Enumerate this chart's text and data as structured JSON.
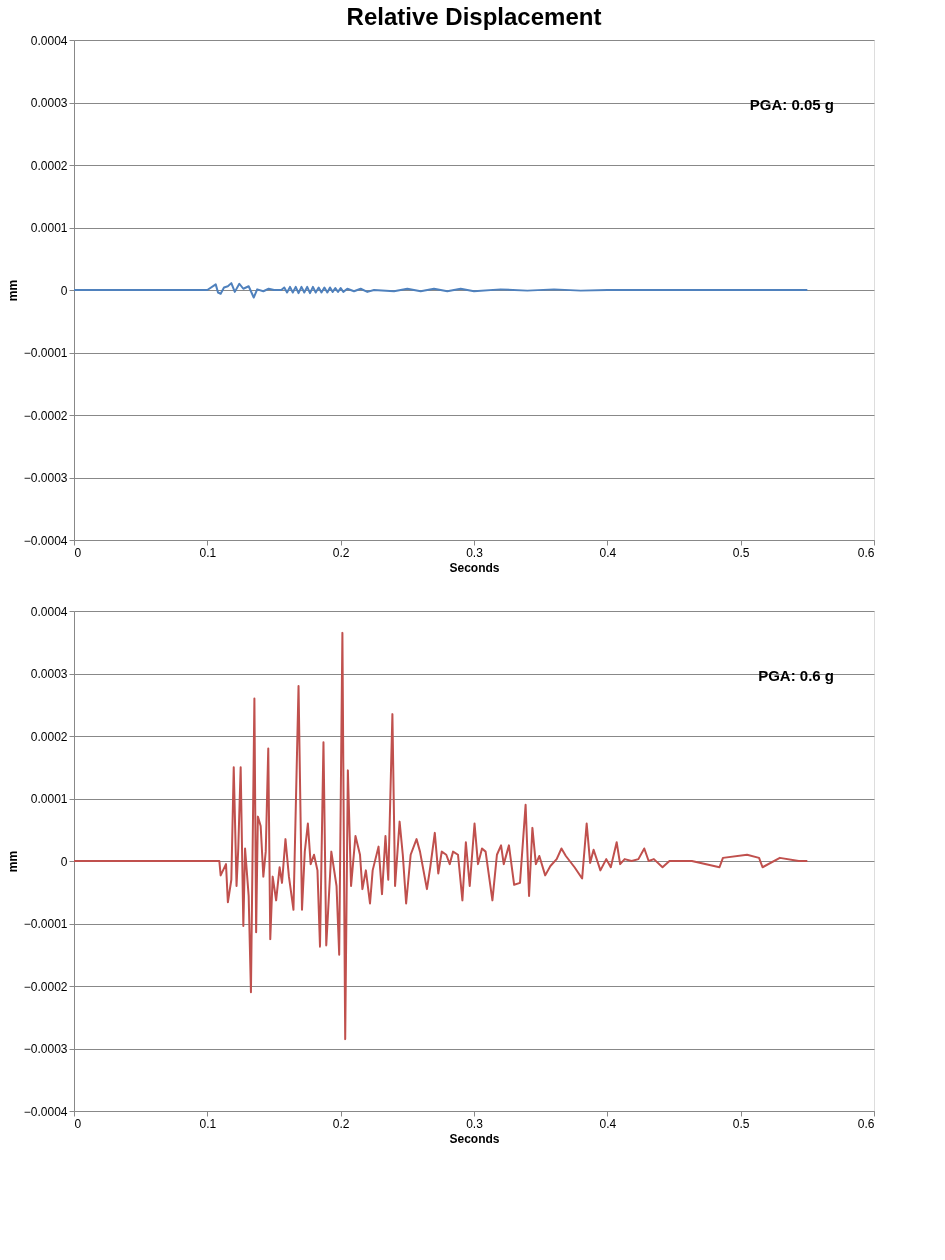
{
  "chart_data": [
    {
      "type": "line",
      "title": "Relative Displacement",
      "xlabel": "Seconds",
      "ylabel": "mm",
      "xlim": [
        0,
        0.6
      ],
      "ylim": [
        -0.0004,
        0.0004
      ],
      "xticks": [
        0,
        0.1,
        0.2,
        0.3,
        0.4,
        0.5,
        0.6
      ],
      "yticks": [
        -0.0004,
        -0.0003,
        -0.0002,
        -0.0001,
        0,
        0.0001,
        0.0002,
        0.0003,
        0.0004
      ],
      "grid": "y",
      "annotations": [
        "PGA: 0.05 g"
      ],
      "series": [
        {
          "color": "#4f81bd",
          "x": [
            0,
            0.1,
            0.1063,
            0.108,
            0.11,
            0.1125,
            0.1154,
            0.118,
            0.1206,
            0.124,
            0.127,
            0.131,
            0.1348,
            0.1374,
            0.142,
            0.146,
            0.15,
            0.1555,
            0.1577,
            0.1598,
            0.162,
            0.1641,
            0.1663,
            0.1684,
            0.1706,
            0.1727,
            0.1749,
            0.177,
            0.1792,
            0.1813,
            0.1835,
            0.1856,
            0.1878,
            0.19,
            0.192,
            0.194,
            0.196,
            0.198,
            0.2,
            0.202,
            0.205,
            0.21,
            0.215,
            0.22,
            0.225,
            0.24,
            0.25,
            0.26,
            0.27,
            0.28,
            0.29,
            0.3,
            0.32,
            0.34,
            0.36,
            0.38,
            0.4,
            0.55
          ],
          "values": [
            0,
            0,
            9e-06,
            -4e-06,
            -6e-06,
            4e-06,
            6e-06,
            1.1e-05,
            -3e-06,
            1e-05,
            2e-06,
            6e-06,
            -1.2e-05,
            1e-06,
            -2e-06,
            2e-06,
            0,
            0,
            4e-06,
            -4e-06,
            5e-06,
            -4e-06,
            5e-06,
            -5e-06,
            5e-06,
            -4e-06,
            5e-06,
            -5e-06,
            5e-06,
            -4e-06,
            4e-06,
            -4e-06,
            4e-06,
            -4e-06,
            4e-06,
            -3e-06,
            3e-06,
            -3e-06,
            3e-06,
            -3e-06,
            2e-06,
            -2e-06,
            2e-06,
            -3e-06,
            0,
            -2e-06,
            2e-06,
            -2e-06,
            2e-06,
            -2e-06,
            2e-06,
            -2e-06,
            1e-06,
            -1e-06,
            1e-06,
            -1e-06,
            0,
            0
          ]
        }
      ]
    },
    {
      "type": "line",
      "xlabel": "Seconds",
      "ylabel": "mm",
      "xlim": [
        0,
        0.6
      ],
      "ylim": [
        -0.0004,
        0.0004
      ],
      "xticks": [
        0,
        0.1,
        0.2,
        0.3,
        0.4,
        0.5,
        0.6
      ],
      "yticks": [
        -0.0004,
        -0.0003,
        -0.0002,
        -0.0001,
        0,
        0.0001,
        0.0002,
        0.0003,
        0.0004
      ],
      "grid": "y",
      "annotations": [
        "PGA:  0.6 g"
      ],
      "series": [
        {
          "color": "#c0504d",
          "x": [
            0,
            0.075,
            0.096,
            0.109,
            0.11,
            0.114,
            0.1154,
            0.118,
            0.1198,
            0.1219,
            0.1232,
            0.125,
            0.127,
            0.1283,
            0.131,
            0.1327,
            0.1353,
            0.1366,
            0.1379,
            0.14,
            0.142,
            0.1438,
            0.1457,
            0.1472,
            0.149,
            0.1516,
            0.1542,
            0.156,
            0.1586,
            0.1612,
            0.1646,
            0.1684,
            0.171,
            0.1731,
            0.1754,
            0.1775,
            0.18,
            0.1826,
            0.1845,
            0.1871,
            0.1892,
            0.193,
            0.1969,
            0.1989,
            0.2013,
            0.2034,
            0.2054,
            0.2078,
            0.2111,
            0.2145,
            0.2163,
            0.2189,
            0.222,
            0.224,
            0.2284,
            0.231,
            0.2336,
            0.2357,
            0.2388,
            0.2408,
            0.2442,
            0.2466,
            0.2491,
            0.2525,
            0.2569,
            0.2595,
            0.2647,
            0.2672,
            0.2706,
            0.2732,
            0.2758,
            0.2792,
            0.2818,
            0.2843,
            0.288,
            0.2913,
            0.2939,
            0.2968,
            0.3004,
            0.303,
            0.306,
            0.3087,
            0.3138,
            0.3172,
            0.3203,
            0.3223,
            0.3262,
            0.3301,
            0.3345,
            0.3387,
            0.3413,
            0.3438,
            0.3464,
            0.349,
            0.3534,
            0.3573,
            0.362,
            0.3656,
            0.3689,
            0.3754,
            0.3811,
            0.3845,
            0.3871,
            0.3897,
            0.3948,
            0.3992,
            0.4026,
            0.407,
            0.4096,
            0.413,
            0.4182,
            0.4233,
            0.4277,
            0.431,
            0.4349,
            0.4414,
            0.4466,
            0.4634,
            0.4841,
            0.4867,
            0.5048,
            0.5138,
            0.5164,
            0.5294,
            0.5436,
            0.55
          ],
          "values": [
            0,
            0,
            0,
            0,
            -2.3e-05,
            -5e-06,
            -6.6e-05,
            -3e-05,
            0.00015,
            -4e-05,
            2e-05,
            0.00015,
            -0.000104,
            2e-05,
            -5.6e-05,
            -0.00021,
            0.00026,
            -0.000114,
            7.1e-05,
            5.6e-05,
            -2.5e-05,
            1.5e-05,
            0.00018,
            -0.000125,
            -2.5e-05,
            -6.3e-05,
            -1e-05,
            -3.5e-05,
            3.5e-05,
            -2.5e-05,
            -7.8e-05,
            0.00028,
            -7.8e-05,
            1.5e-05,
            6e-05,
            -5e-06,
            1e-05,
            -1.5e-05,
            -0.000137,
            0.00019,
            -0.000135,
            1.5e-05,
            -4e-05,
            -0.00015,
            0.000365,
            -0.000285,
            0.000145,
            -4e-05,
            4e-05,
            1e-05,
            -4.5e-05,
            -1.5e-05,
            -6.8e-05,
            -1.5e-05,
            2.3e-05,
            -5.3e-05,
            4e-05,
            -3e-05,
            0.000235,
            -4e-05,
            6.3e-05,
            1e-05,
            -6.8e-05,
            1e-05,
            3.5e-05,
            1.5e-05,
            -4.5e-05,
            -1e-05,
            4.5e-05,
            -2e-05,
            1.5e-05,
            1e-05,
            -5e-06,
            1.5e-05,
            1e-05,
            -6.3e-05,
            3e-05,
            -4e-05,
            6e-05,
            -5e-06,
            2e-05,
            1.5e-05,
            -6.3e-05,
            1e-05,
            2.5e-05,
            -5e-06,
            2.5e-05,
            -3.8e-05,
            -3.5e-05,
            9e-05,
            -5.6e-05,
            5.3e-05,
            -5e-06,
            8e-06,
            -2.3e-05,
            -8e-06,
            3e-06,
            2e-05,
            8e-06,
            -1e-05,
            -2.8e-05,
            6e-05,
            -3e-06,
            1.8e-05,
            -1.5e-05,
            3e-06,
            -1e-05,
            3e-05,
            -5e-06,
            3e-06,
            0,
            3e-06,
            2e-05,
            0,
            3e-06,
            -1e-05,
            0,
            0,
            -1e-05,
            5e-06,
            1e-05,
            5e-06,
            -1e-05,
            5e-06,
            0,
            0
          ]
        }
      ]
    }
  ]
}
